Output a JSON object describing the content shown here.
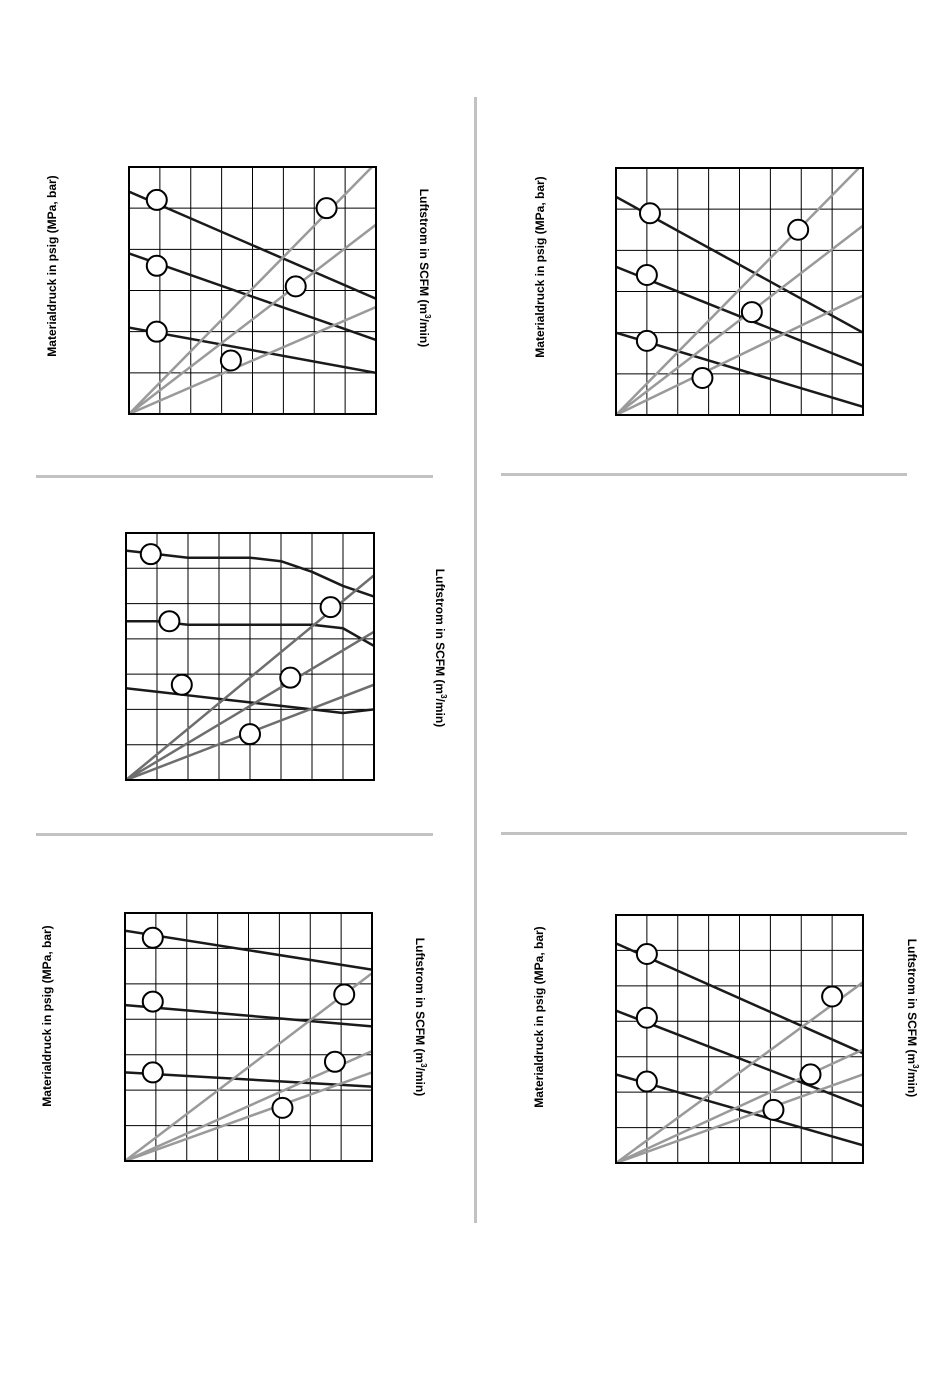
{
  "labels": {
    "material_pressure": "Materialdruck in psig (MPa, bar)",
    "airflow_main": "Luftstrom in SCFM (m",
    "airflow_sup": "3",
    "airflow_tail": "/min)"
  },
  "colors": {
    "pressure_line": "#1a1a1a",
    "airflow_line": "#9a9a9a",
    "airflow_line_dark": "#6e6e6e",
    "grid": "#000000",
    "divider": "#c2c2c2"
  },
  "chart_data": [
    {
      "type": "line",
      "position": "top-left",
      "xlim": [
        0,
        8
      ],
      "ylim": [
        0,
        6
      ],
      "grid": true,
      "series": [
        {
          "role": "material-pressure",
          "x": [
            0,
            8
          ],
          "y": [
            5.4,
            2.8
          ]
        },
        {
          "role": "material-pressure",
          "x": [
            0,
            8
          ],
          "y": [
            3.9,
            1.8
          ]
        },
        {
          "role": "material-pressure",
          "x": [
            0,
            8
          ],
          "y": [
            2.1,
            1.0
          ]
        },
        {
          "role": "airflow",
          "x": [
            0,
            8
          ],
          "y": [
            0,
            6.1
          ]
        },
        {
          "role": "airflow",
          "x": [
            0,
            8
          ],
          "y": [
            0,
            4.6
          ]
        },
        {
          "role": "airflow",
          "x": [
            0,
            8
          ],
          "y": [
            0,
            2.6
          ]
        }
      ],
      "markers": [
        [
          0.9,
          5.2
        ],
        [
          0.9,
          3.6
        ],
        [
          0.9,
          2.0
        ],
        [
          6.4,
          5.0
        ],
        [
          5.4,
          3.1
        ],
        [
          3.3,
          1.3
        ]
      ]
    },
    {
      "type": "line",
      "position": "top-right",
      "xlim": [
        0,
        8
      ],
      "ylim": [
        0,
        6
      ],
      "grid": true,
      "series": [
        {
          "role": "material-pressure",
          "x": [
            0,
            8
          ],
          "y": [
            5.3,
            2.0
          ]
        },
        {
          "role": "material-pressure",
          "x": [
            0,
            8
          ],
          "y": [
            3.6,
            1.2
          ]
        },
        {
          "role": "material-pressure",
          "x": [
            0,
            8
          ],
          "y": [
            2.0,
            0.2
          ]
        },
        {
          "role": "airflow",
          "x": [
            0,
            8
          ],
          "y": [
            0,
            6.1
          ]
        },
        {
          "role": "airflow",
          "x": [
            0,
            8
          ],
          "y": [
            0,
            4.6
          ]
        },
        {
          "role": "airflow",
          "x": [
            0,
            8
          ],
          "y": [
            0,
            2.9
          ]
        }
      ],
      "markers": [
        [
          1.1,
          4.9
        ],
        [
          1.0,
          3.4
        ],
        [
          1.0,
          1.8
        ],
        [
          5.9,
          4.5
        ],
        [
          4.4,
          2.5
        ],
        [
          2.8,
          0.9
        ]
      ]
    },
    {
      "type": "line",
      "position": "middle-left",
      "xlim": [
        0,
        8
      ],
      "ylim": [
        0,
        7
      ],
      "grid": true,
      "series": [
        {
          "role": "material-pressure",
          "x": [
            0,
            1,
            2,
            3,
            4,
            5,
            6,
            7,
            8
          ],
          "y": [
            6.5,
            6.4,
            6.3,
            6.3,
            6.3,
            6.2,
            5.9,
            5.5,
            5.2
          ]
        },
        {
          "role": "material-pressure",
          "x": [
            0,
            1,
            2,
            3,
            4,
            5,
            6,
            7,
            8
          ],
          "y": [
            4.5,
            4.5,
            4.4,
            4.4,
            4.4,
            4.4,
            4.4,
            4.3,
            3.8
          ]
        },
        {
          "role": "material-pressure",
          "x": [
            0,
            1,
            2,
            3,
            4,
            5,
            6,
            7,
            8
          ],
          "y": [
            2.6,
            2.5,
            2.4,
            2.3,
            2.2,
            2.1,
            2.0,
            1.9,
            2.0
          ]
        },
        {
          "role": "airflow",
          "x": [
            0,
            8
          ],
          "y": [
            0,
            5.8
          ]
        },
        {
          "role": "airflow",
          "x": [
            0,
            8
          ],
          "y": [
            0,
            4.2
          ]
        },
        {
          "role": "airflow",
          "x": [
            0,
            8
          ],
          "y": [
            0,
            2.7
          ]
        }
      ],
      "markers": [
        [
          0.8,
          6.4
        ],
        [
          1.4,
          4.5
        ],
        [
          1.8,
          2.7
        ],
        [
          6.6,
          4.9
        ],
        [
          5.3,
          2.9
        ],
        [
          4.0,
          1.3
        ]
      ]
    },
    {
      "type": "line",
      "position": "bottom-left",
      "xlim": [
        0,
        8
      ],
      "ylim": [
        0,
        7
      ],
      "grid": true,
      "series": [
        {
          "role": "material-pressure",
          "x": [
            0,
            8
          ],
          "y": [
            6.5,
            5.4
          ]
        },
        {
          "role": "material-pressure",
          "x": [
            0,
            8
          ],
          "y": [
            4.4,
            3.8
          ]
        },
        {
          "role": "material-pressure",
          "x": [
            0,
            8
          ],
          "y": [
            2.5,
            2.1
          ]
        },
        {
          "role": "airflow",
          "x": [
            0,
            8
          ],
          "y": [
            0,
            5.3
          ]
        },
        {
          "role": "airflow",
          "x": [
            0,
            8
          ],
          "y": [
            0,
            3.1
          ]
        },
        {
          "role": "airflow",
          "x": [
            0,
            8
          ],
          "y": [
            0,
            2.5
          ]
        }
      ],
      "markers": [
        [
          0.9,
          6.3
        ],
        [
          0.9,
          4.5
        ],
        [
          0.9,
          2.5
        ],
        [
          7.1,
          4.7
        ],
        [
          6.8,
          2.8
        ],
        [
          5.1,
          1.5
        ]
      ]
    },
    {
      "type": "line",
      "position": "bottom-right",
      "xlim": [
        0,
        8
      ],
      "ylim": [
        0,
        7
      ],
      "grid": true,
      "series": [
        {
          "role": "material-pressure",
          "x": [
            0,
            8
          ],
          "y": [
            6.2,
            3.1
          ]
        },
        {
          "role": "material-pressure",
          "x": [
            0,
            8
          ],
          "y": [
            4.3,
            1.6
          ]
        },
        {
          "role": "material-pressure",
          "x": [
            0,
            8
          ],
          "y": [
            2.5,
            0.5
          ]
        },
        {
          "role": "airflow",
          "x": [
            0,
            8
          ],
          "y": [
            0,
            5.1
          ]
        },
        {
          "role": "airflow",
          "x": [
            0,
            8
          ],
          "y": [
            0,
            3.2
          ]
        },
        {
          "role": "airflow",
          "x": [
            0,
            8
          ],
          "y": [
            0,
            2.5
          ]
        }
      ],
      "markers": [
        [
          1.0,
          5.9
        ],
        [
          1.0,
          4.1
        ],
        [
          1.0,
          2.3
        ],
        [
          7.0,
          4.7
        ],
        [
          6.3,
          2.5
        ],
        [
          5.1,
          1.5
        ]
      ]
    }
  ]
}
